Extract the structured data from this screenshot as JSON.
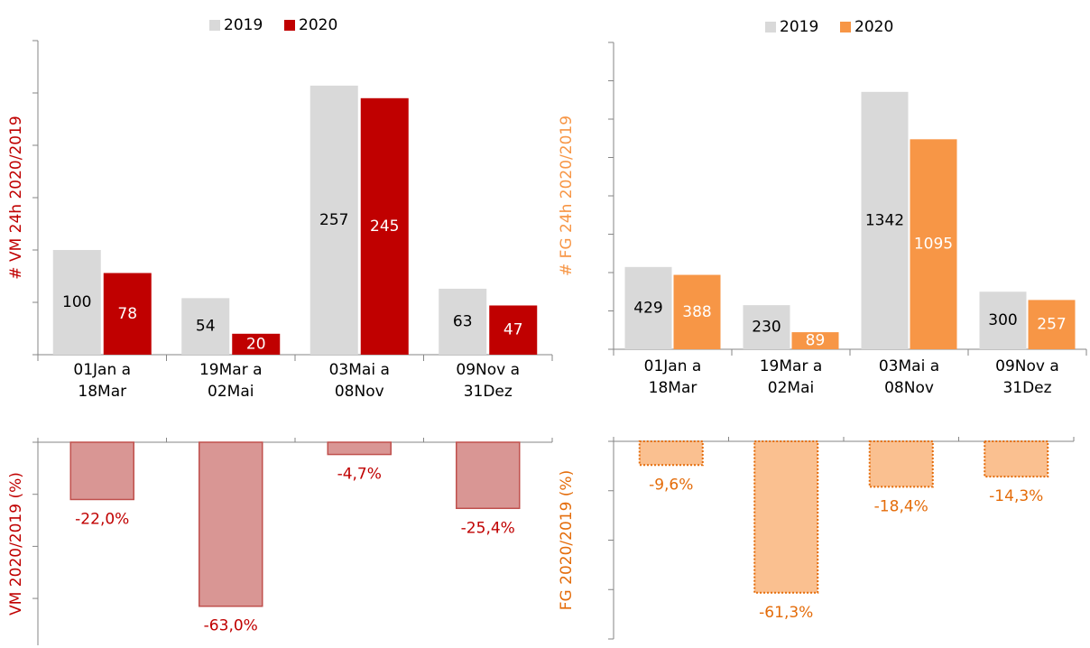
{
  "chart_data": [
    {
      "type": "bar",
      "ylabel": "# VM 24h 2020/2019",
      "categories": [
        "01Jan a 18Mar",
        "19Mar a 02Mai",
        "03Mai a 08Nov",
        "09Nov a 31Dez"
      ],
      "series": [
        {
          "name": "2019",
          "color": "#d9d9d9",
          "values": [
            100,
            54,
            257,
            63
          ]
        },
        {
          "name": "2020",
          "color": "#c00000",
          "values": [
            78,
            20,
            245,
            47
          ]
        }
      ],
      "ylim": [
        0,
        300
      ],
      "yticks": [
        0,
        50,
        100,
        150,
        200,
        250,
        300
      ]
    },
    {
      "type": "bar",
      "ylabel": "VM 2020/2019  (%)",
      "values": [
        -22.0,
        -63.0,
        -4.7,
        -25.4
      ],
      "value_labels": [
        "-22,0%",
        "-63,0%",
        "-4,7%",
        "-25,4%"
      ],
      "color": "#d99694",
      "edgecolor": "#c0504d",
      "linestyle": "solid",
      "label_color": "#c00000",
      "ylim": [
        -78,
        0
      ],
      "yticks": [
        0,
        -20,
        -40,
        -60
      ]
    },
    {
      "type": "bar",
      "ylabel": "# FG 24h 2020/2019",
      "categories": [
        "01Jan a 18Mar",
        "19Mar a 02Mai",
        "03Mai a 08Nov",
        "09Nov a 31Dez"
      ],
      "series": [
        {
          "name": "2019",
          "color": "#d9d9d9",
          "values": [
            429,
            230,
            1342,
            300
          ]
        },
        {
          "name": "2020",
          "color": "#f79646",
          "values": [
            388,
            89,
            1095,
            257
          ]
        }
      ],
      "ylim": [
        0,
        1600
      ],
      "yticks": [
        0,
        200,
        400,
        600,
        800,
        1000,
        1200,
        1400,
        1600
      ]
    },
    {
      "type": "bar",
      "ylabel": "FG 2020/2019 (%)",
      "values": [
        -9.6,
        -61.3,
        -18.4,
        -14.3
      ],
      "value_labels": [
        "-9,6%",
        "-61,3%",
        "-18,4%",
        "-14,3%"
      ],
      "color": "#fac090",
      "edgecolor": "#e46c0a",
      "linestyle": "dotted",
      "label_color": "#e46c0a",
      "ylim": [
        -80,
        0
      ],
      "yticks": [
        0,
        -20,
        -40,
        -60,
        -80
      ]
    }
  ]
}
